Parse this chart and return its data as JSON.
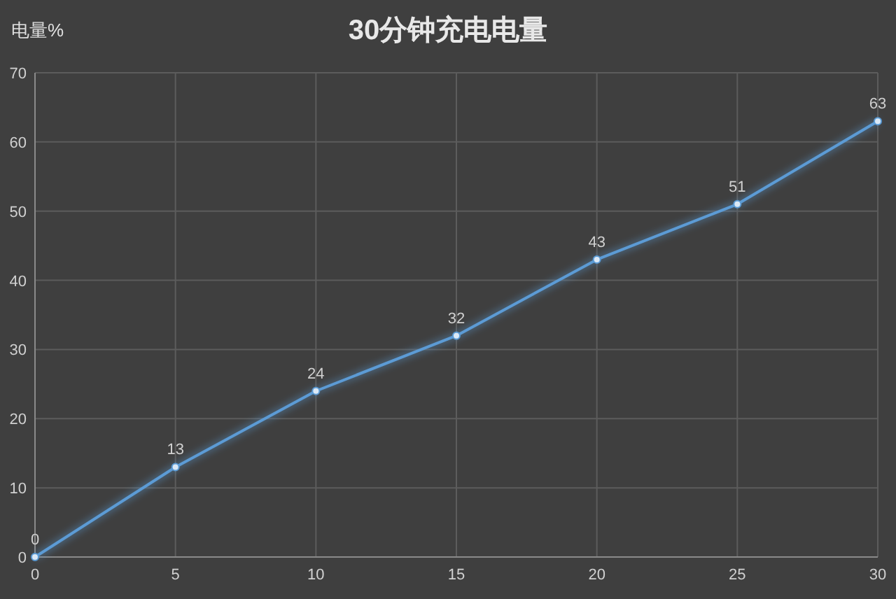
{
  "chart_data": {
    "type": "line",
    "title": "30分钟充电电量",
    "ylabel": "电量%",
    "x": [
      0,
      5,
      10,
      15,
      20,
      25,
      30
    ],
    "series": [
      {
        "color": "#5b9bd5",
        "values": [
          0,
          13,
          24,
          32,
          43,
          51,
          63
        ]
      }
    ],
    "xlim": [
      0,
      30
    ],
    "xticks": [
      0,
      5,
      10,
      15,
      20,
      25,
      30
    ],
    "ylim": [
      0,
      70
    ],
    "yticks": [
      0,
      10,
      20,
      30,
      40,
      50,
      60,
      70
    ],
    "grid": true,
    "data_labels": true,
    "marker": "circle",
    "line_style": "solid"
  }
}
